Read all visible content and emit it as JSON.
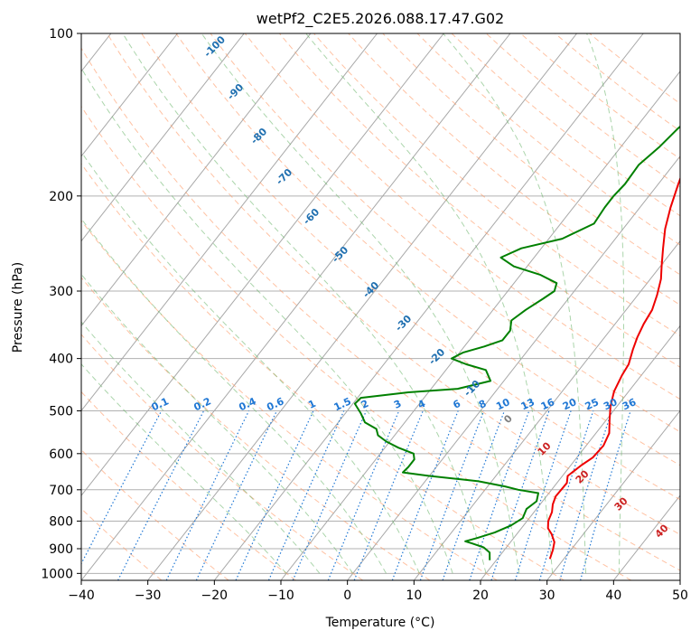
{
  "chart_data": {
    "type": "line",
    "title": "wetPf2_C2E5.2026.088.17.47.G02",
    "xlabel": "Temperature (°C)",
    "ylabel": "Pressure (hPa)",
    "xlim": [
      -40,
      50
    ],
    "ylim": [
      1030,
      100
    ],
    "y_scale": "log",
    "grid": true,
    "x_ticks": [
      "−40",
      "−30",
      "−20",
      "−10",
      "0",
      "10",
      "20",
      "30",
      "40",
      "50"
    ],
    "x_tick_values": [
      -40,
      -30,
      -20,
      -10,
      0,
      10,
      20,
      30,
      40,
      50
    ],
    "y_ticks": [
      "100",
      "200",
      "300",
      "400",
      "500",
      "600",
      "700",
      "800",
      "900",
      "1000"
    ],
    "y_tick_values": [
      100,
      200,
      300,
      400,
      500,
      600,
      700,
      800,
      900,
      1000
    ],
    "series": [
      {
        "role": "temperature",
        "color": "#ee0000",
        "points": [
          [
            27.9,
            940
          ],
          [
            27.3,
            905
          ],
          [
            26.6,
            875
          ],
          [
            25.2,
            845
          ],
          [
            24.0,
            825
          ],
          [
            23.2,
            800
          ],
          [
            22.7,
            770
          ],
          [
            21.9,
            745
          ],
          [
            21.4,
            720
          ],
          [
            21.5,
            680
          ],
          [
            20.8,
            660
          ],
          [
            21.6,
            630
          ],
          [
            22.4,
            610
          ],
          [
            22.6,
            580
          ],
          [
            22.0,
            550
          ],
          [
            20.5,
            520
          ],
          [
            19.0,
            490
          ],
          [
            17.8,
            460
          ],
          [
            17.1,
            430
          ],
          [
            16.8,
            410
          ],
          [
            15.7,
            385
          ],
          [
            14.9,
            365
          ],
          [
            14.3,
            345
          ],
          [
            13.9,
            325
          ],
          [
            12.9,
            305
          ],
          [
            11.6,
            285
          ],
          [
            10.2,
            270
          ],
          [
            8.3,
            250
          ],
          [
            6.3,
            230
          ],
          [
            4.6,
            210
          ],
          [
            3.0,
            190
          ],
          [
            1.8,
            175
          ],
          [
            0.7,
            162
          ],
          [
            -0.5,
            148
          ],
          [
            -0.8,
            135
          ],
          [
            0.3,
            125
          ],
          [
            0.6,
            115
          ],
          [
            2.3,
            107
          ],
          [
            3.2,
            100
          ]
        ]
      },
      {
        "role": "dewpoint",
        "color": "#008000",
        "points": [
          [
            19.0,
            945
          ],
          [
            18.1,
            915
          ],
          [
            16.6,
            895
          ],
          [
            14.4,
            880
          ],
          [
            13.1,
            872
          ],
          [
            14.5,
            860
          ],
          [
            16.5,
            840
          ],
          [
            18.1,
            815
          ],
          [
            19.0,
            790
          ],
          [
            18.5,
            760
          ],
          [
            19.1,
            735
          ],
          [
            18.4,
            710
          ],
          [
            15.0,
            700
          ],
          [
            12.6,
            690
          ],
          [
            8.0,
            675
          ],
          [
            0.0,
            660
          ],
          [
            -4.4,
            650
          ],
          [
            -4.2,
            635
          ],
          [
            -4.2,
            615
          ],
          [
            -5.0,
            600
          ],
          [
            -8.0,
            585
          ],
          [
            -10.5,
            570
          ],
          [
            -12.5,
            555
          ],
          [
            -13.5,
            540
          ],
          [
            -16.0,
            525
          ],
          [
            -17.7,
            505
          ],
          [
            -19.7,
            485
          ],
          [
            -19.5,
            473
          ],
          [
            -13.0,
            462
          ],
          [
            -6.0,
            455
          ],
          [
            -2.0,
            440
          ],
          [
            -4.0,
            420
          ],
          [
            -7.6,
            410
          ],
          [
            -10.5,
            400
          ],
          [
            -9.5,
            390
          ],
          [
            -7.0,
            380
          ],
          [
            -5.0,
            370
          ],
          [
            -5.0,
            355
          ],
          [
            -6.0,
            340
          ],
          [
            -5.1,
            325
          ],
          [
            -3.8,
            310
          ],
          [
            -3.0,
            300
          ],
          [
            -3.6,
            290
          ],
          [
            -7.0,
            280
          ],
          [
            -12.0,
            270
          ],
          [
            -15.0,
            260
          ],
          [
            -13.0,
            250
          ],
          [
            -8.0,
            240
          ],
          [
            -5.0,
            225
          ],
          [
            -5.3,
            210
          ],
          [
            -5.3,
            200
          ],
          [
            -5.0,
            190
          ],
          [
            -5.2,
            175
          ],
          [
            -4.2,
            162
          ],
          [
            -3.6,
            150
          ],
          [
            -2.4,
            138
          ],
          [
            -3.2,
            132
          ],
          [
            -3.9,
            125
          ],
          [
            -5.2,
            120
          ],
          [
            -4.9,
            113
          ],
          [
            -4.0,
            106
          ],
          [
            -3.4,
            100
          ]
        ]
      }
    ],
    "dry_adiabat_labels": [
      "-100",
      "-90",
      "-80",
      "-70",
      "-60",
      "-50",
      "-40",
      "-30",
      "-20",
      "-10",
      "0",
      "10",
      "20",
      "30",
      "40"
    ],
    "mixing_ratio_labels": [
      "0.1",
      "0.2",
      "0.4",
      "0.6",
      "1",
      "1.5",
      "2",
      "3",
      "4",
      "6",
      "8",
      "10",
      "13",
      "16",
      "20",
      "25",
      "30",
      "36"
    ],
    "mixing_ratio_values": [
      0.1,
      0.2,
      0.4,
      0.6,
      1,
      1.5,
      2,
      3,
      4,
      6,
      8,
      10,
      13,
      16,
      20,
      25,
      30,
      36
    ],
    "colors": {
      "isotherm": "#8c8c8c",
      "dry_adiabat": "#ff9966",
      "moist_adiabat": "#66b266",
      "mixing_ratio": "#1f77d4",
      "adiabat_label": "#1f6fb0",
      "warm_label": "#cc2222",
      "zero_label": "#808080"
    }
  }
}
